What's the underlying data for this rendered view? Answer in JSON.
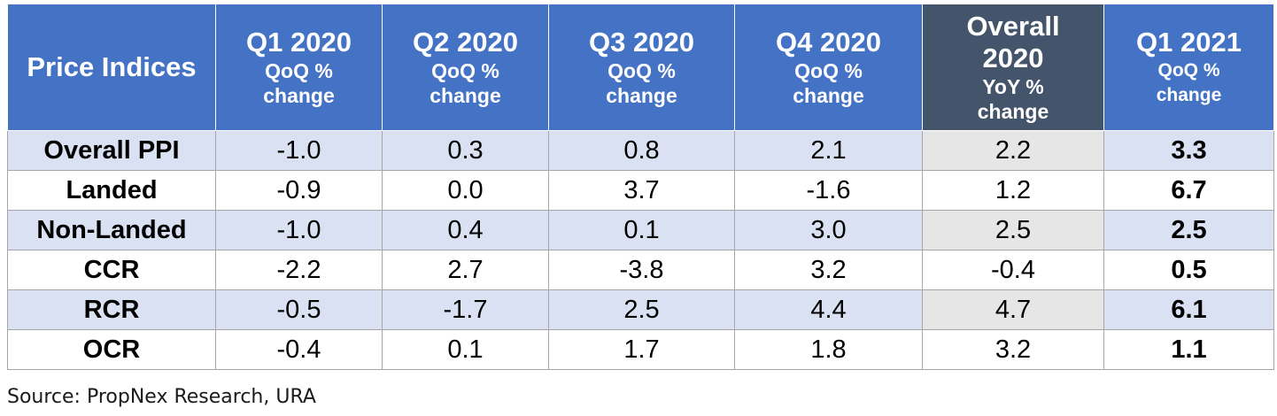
{
  "chart_data": {
    "type": "table",
    "columns": [
      {
        "main": "Price Indices",
        "sub": ""
      },
      {
        "main": "Q1 2020",
        "sub": "QoQ % change"
      },
      {
        "main": "Q2 2020",
        "sub": "QoQ % change"
      },
      {
        "main": "Q3 2020",
        "sub": "QoQ % change"
      },
      {
        "main": "Q4 2020",
        "sub": "QoQ % change"
      },
      {
        "main": "Overall 2020",
        "sub": "YoY % change"
      },
      {
        "main": "Q1 2021",
        "sub": "QoQ % change"
      }
    ],
    "rows": [
      {
        "label": "Overall PPI",
        "values": [
          "-1.0",
          "0.3",
          "0.8",
          "2.1",
          "2.2",
          "3.3"
        ]
      },
      {
        "label": "Landed",
        "values": [
          "-0.9",
          "0.0",
          "3.7",
          "-1.6",
          "1.2",
          "6.7"
        ]
      },
      {
        "label": "Non-Landed",
        "values": [
          "-1.0",
          "0.4",
          "0.1",
          "3.0",
          "2.5",
          "2.5"
        ]
      },
      {
        "label": "CCR",
        "values": [
          "-2.2",
          "2.7",
          "-3.8",
          "3.2",
          "-0.4",
          "0.5"
        ]
      },
      {
        "label": "RCR",
        "values": [
          "-0.5",
          "-1.7",
          "2.5",
          "4.4",
          "4.7",
          "6.1"
        ]
      },
      {
        "label": "OCR",
        "values": [
          "-0.4",
          "0.1",
          "1.7",
          "1.8",
          "3.2",
          "1.1"
        ]
      }
    ],
    "colors": {
      "header": "#4472c4",
      "header_highlight": "#44546a",
      "band": "#d9e1f2",
      "overall_band": "#e7e6e6"
    }
  },
  "source": "Source: PropNex Research, URA"
}
